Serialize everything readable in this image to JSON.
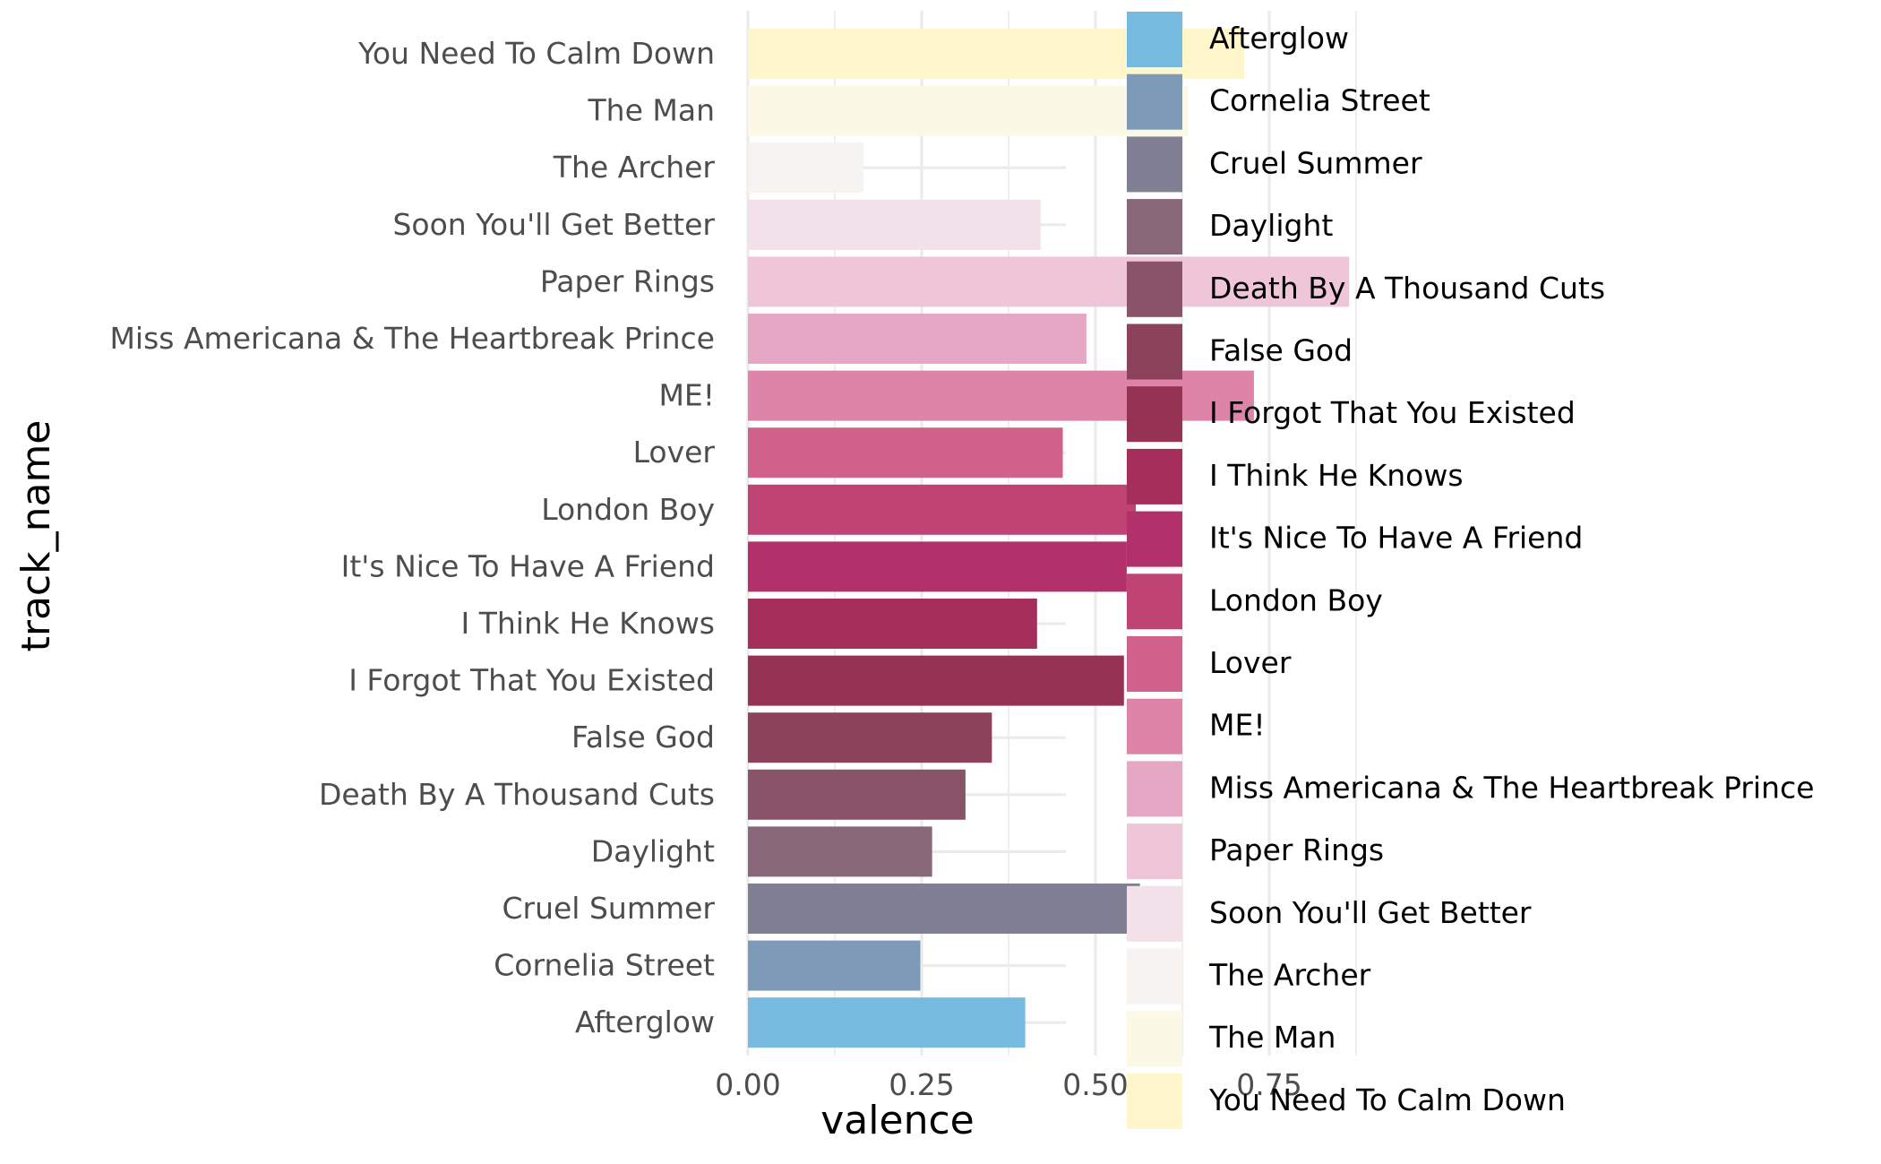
{
  "chart_data": {
    "type": "bar",
    "orientation": "horizontal",
    "xlabel": "valence",
    "ylabel": "track_name",
    "xlim": [
      0,
      0.9
    ],
    "x_ticks": [
      0,
      0.25,
      0.5,
      0.75
    ],
    "x_tick_labels": [
      "0.00",
      "0.25",
      "0.50",
      "0.75"
    ],
    "grid": true,
    "legend_position": "right",
    "categories": [
      "Afterglow",
      "Cornelia Street",
      "Cruel Summer",
      "Daylight",
      "Death By A Thousand Cuts",
      "False God",
      "I Forgot That You Existed",
      "I Think He Knows",
      "It's Nice To Have A Friend",
      "London Boy",
      "Lover",
      "ME!",
      "Miss Americana & The Heartbreak Prince",
      "Paper Rings",
      "Soon You'll Get Better",
      "The Archer",
      "The Man",
      "You Need To Calm Down"
    ],
    "values": [
      0.399,
      0.248,
      0.564,
      0.265,
      0.313,
      0.351,
      0.541,
      0.416,
      0.545,
      0.558,
      0.453,
      0.728,
      0.487,
      0.865,
      0.421,
      0.166,
      0.633,
      0.714
    ],
    "colors": [
      "#77BAE0",
      "#7D9BB7",
      "#817F93",
      "#876778",
      "#8A5468",
      "#8D425C",
      "#963354",
      "#A52E5B",
      "#B2316A",
      "#C04473",
      "#CF618A",
      "#DD84A8",
      "#E6A7C4",
      "#EFC6D8",
      "#F2E1E8",
      "#F6F3F0",
      "#FBF8E6",
      "#FFF6CC"
    ]
  }
}
